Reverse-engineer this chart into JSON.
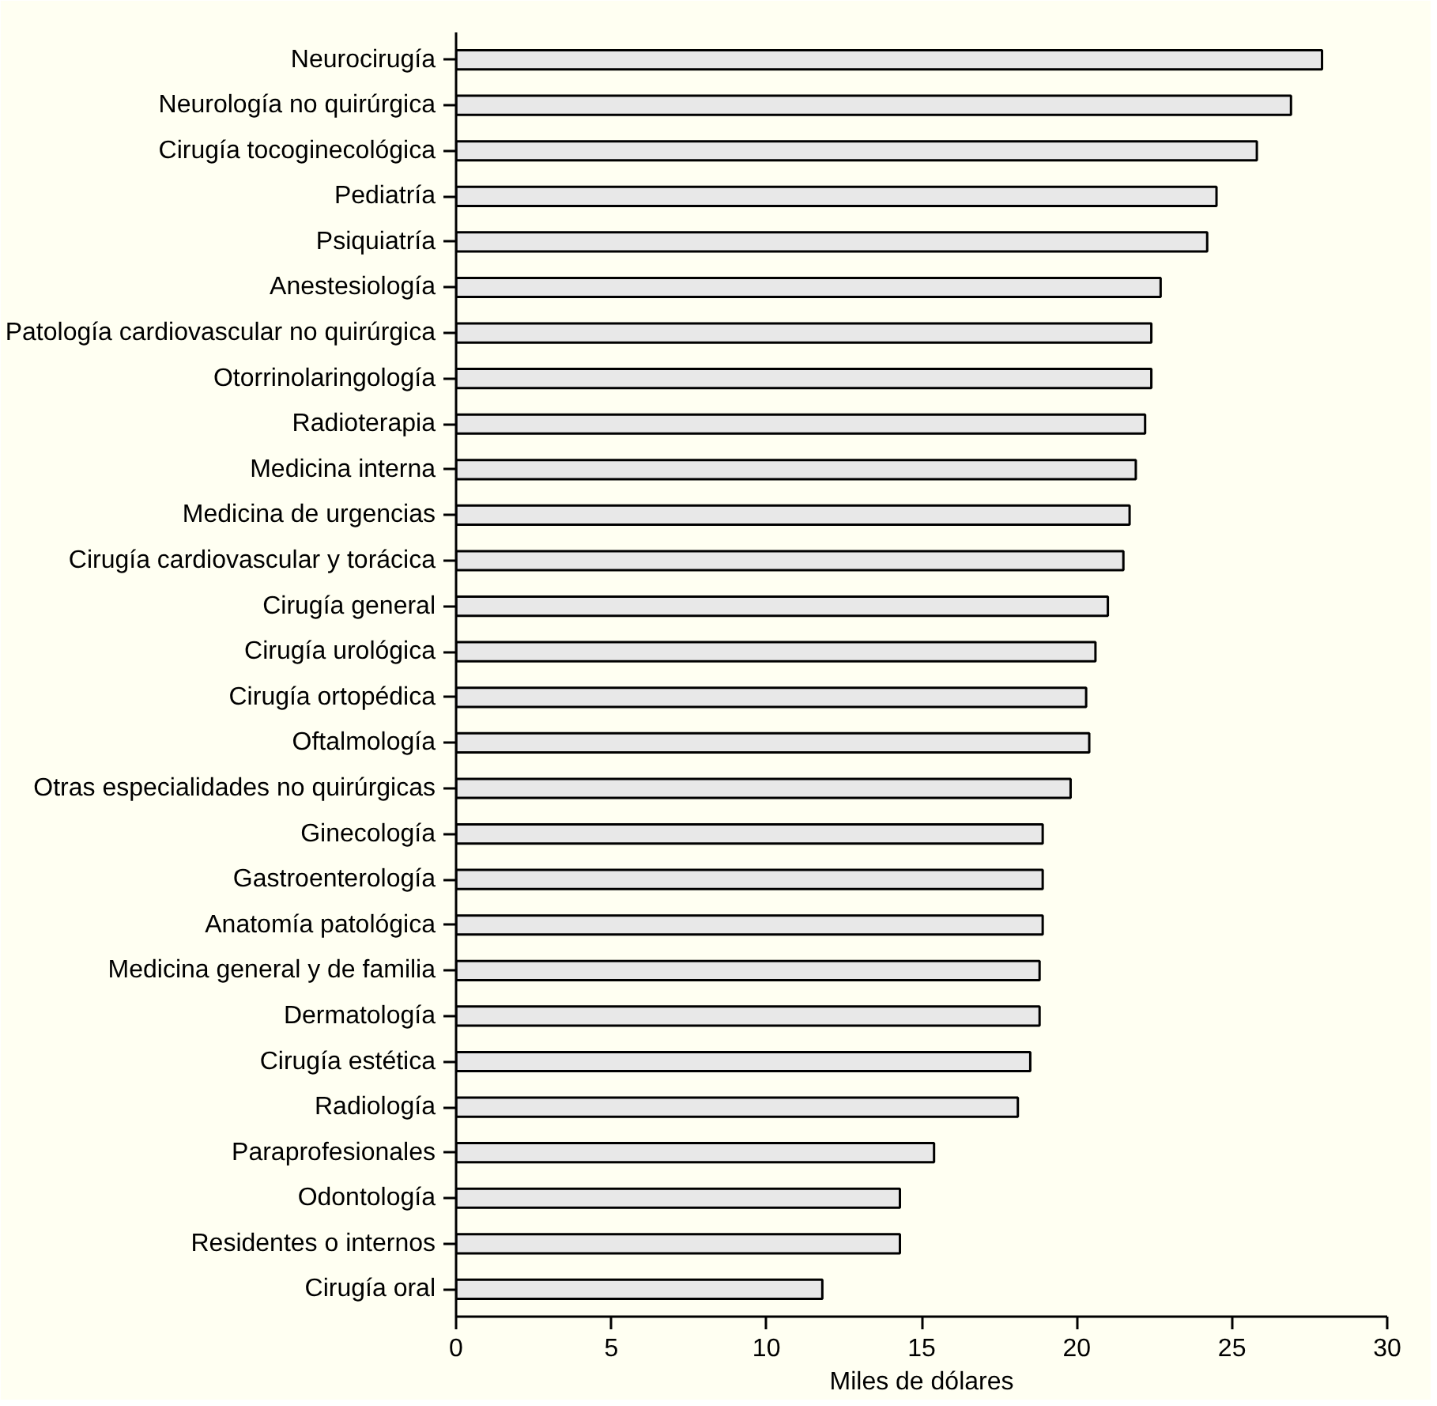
{
  "chart_data": {
    "type": "bar",
    "orientation": "horizontal",
    "xlabel": "Miles de dólares",
    "categories": [
      "Neurocirugía",
      "Neurología no quirúrgica",
      "Cirugía tocoginecológica",
      "Pediatría",
      "Psiquiatría",
      "Anestesiología",
      "Patología cardiovascular no quirúrgica",
      "Otorrinolaringología",
      "Radioterapia",
      "Medicina interna",
      "Medicina de urgencias",
      "Cirugía cardiovascular y torácica",
      "Cirugía general",
      "Cirugía urológica",
      "Cirugía ortopédica",
      "Oftalmología",
      "Otras especialidades no quirúrgicas",
      "Ginecología",
      "Gastroenterología",
      "Anatomía patológica",
      "Medicina general y de familia",
      "Dermatología",
      "Cirugía estética",
      "Radiología",
      "Paraprofesionales",
      "Odontología",
      "Residentes o internos",
      "Cirugía oral"
    ],
    "values": [
      27.9,
      26.9,
      25.8,
      24.5,
      24.2,
      22.7,
      22.4,
      22.4,
      22.2,
      21.9,
      21.7,
      21.5,
      21.0,
      20.6,
      20.3,
      20.4,
      19.8,
      18.9,
      18.9,
      18.9,
      18.8,
      18.8,
      18.5,
      18.1,
      15.4,
      14.3,
      14.3,
      11.8
    ],
    "color": "#e8e8e8",
    "xlim": [
      0,
      30
    ],
    "xticks": [
      0,
      5,
      10,
      15,
      20,
      25,
      30
    ],
    "grid": false
  }
}
